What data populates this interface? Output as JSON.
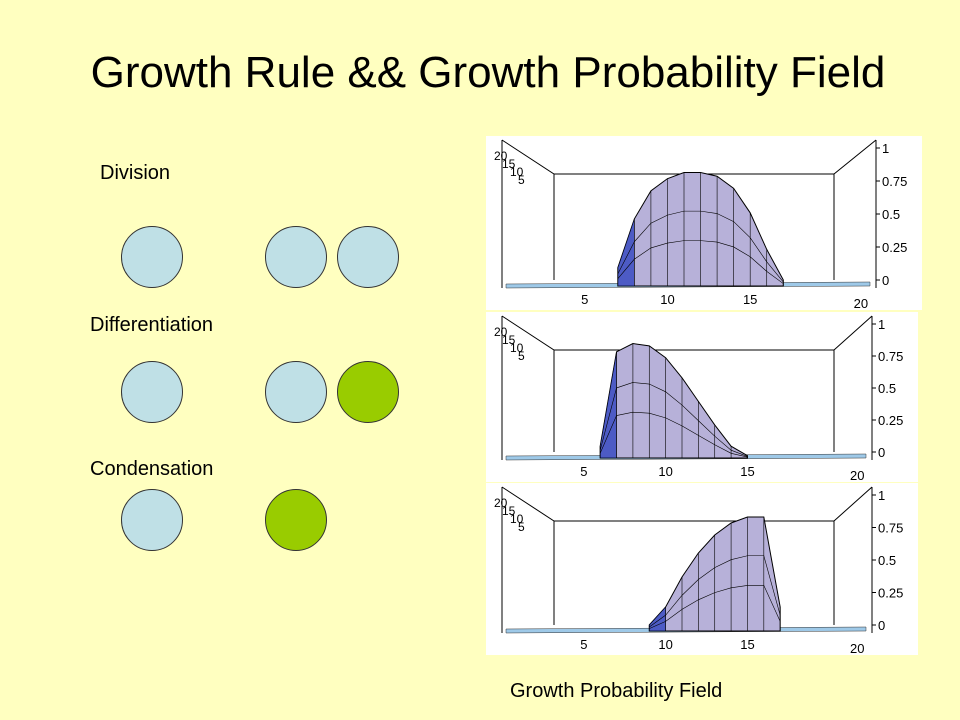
{
  "slide": {
    "title": "Growth Rule && Growth Probability Field",
    "caption": "Growth Probability Field"
  },
  "rules": [
    {
      "label": "Division",
      "before": [
        "blue"
      ],
      "after": [
        "blue",
        "blue"
      ]
    },
    {
      "label": "Differentiation",
      "before": [
        "blue"
      ],
      "after": [
        "blue",
        "green"
      ]
    },
    {
      "label": "Condensation",
      "before": [
        "blue"
      ],
      "after": [
        "green"
      ]
    }
  ],
  "colors": {
    "background": "#ffffc0",
    "blue_cell": "#bfe0e6",
    "green_cell": "#99cc00",
    "surface": "#b7b1d9",
    "surface_dark": "#2a3fbf"
  },
  "chart_data": [
    {
      "type": "area",
      "x_ticks": [
        "5",
        "10",
        "15",
        "20"
      ],
      "y_ticks": [
        "20",
        "15",
        "10",
        "5"
      ],
      "z_ticks": [
        "1",
        "0.75",
        "0.5",
        "0.25",
        "0"
      ],
      "profile": {
        "x": [
          7,
          8,
          9,
          10,
          11,
          12,
          13,
          14,
          15,
          16,
          17
        ],
        "z": [
          0.15,
          0.55,
          0.78,
          0.88,
          0.93,
          0.93,
          0.9,
          0.8,
          0.6,
          0.3,
          0.05
        ]
      }
    },
    {
      "type": "area",
      "x_ticks": [
        "5",
        "10",
        "15",
        "20"
      ],
      "y_ticks": [
        "20",
        "15",
        "10",
        "5"
      ],
      "z_ticks": [
        "1",
        "0.75",
        "0.5",
        "0.25",
        "0"
      ],
      "profile": {
        "x": [
          6,
          7,
          8,
          9,
          10,
          11,
          12,
          13,
          14,
          15
        ],
        "z": [
          0.1,
          0.9,
          0.97,
          0.95,
          0.85,
          0.68,
          0.48,
          0.28,
          0.1,
          0.02
        ]
      }
    },
    {
      "type": "area",
      "x_ticks": [
        "5",
        "10",
        "15",
        "20"
      ],
      "y_ticks": [
        "20",
        "15",
        "10",
        "5"
      ],
      "z_ticks": [
        "1",
        "0.75",
        "0.5",
        "0.25",
        "0"
      ],
      "profile": {
        "x": [
          9,
          10,
          11,
          12,
          13,
          14,
          15,
          16,
          17
        ],
        "z": [
          0.05,
          0.2,
          0.45,
          0.65,
          0.8,
          0.9,
          0.95,
          0.95,
          0.2
        ]
      }
    }
  ]
}
